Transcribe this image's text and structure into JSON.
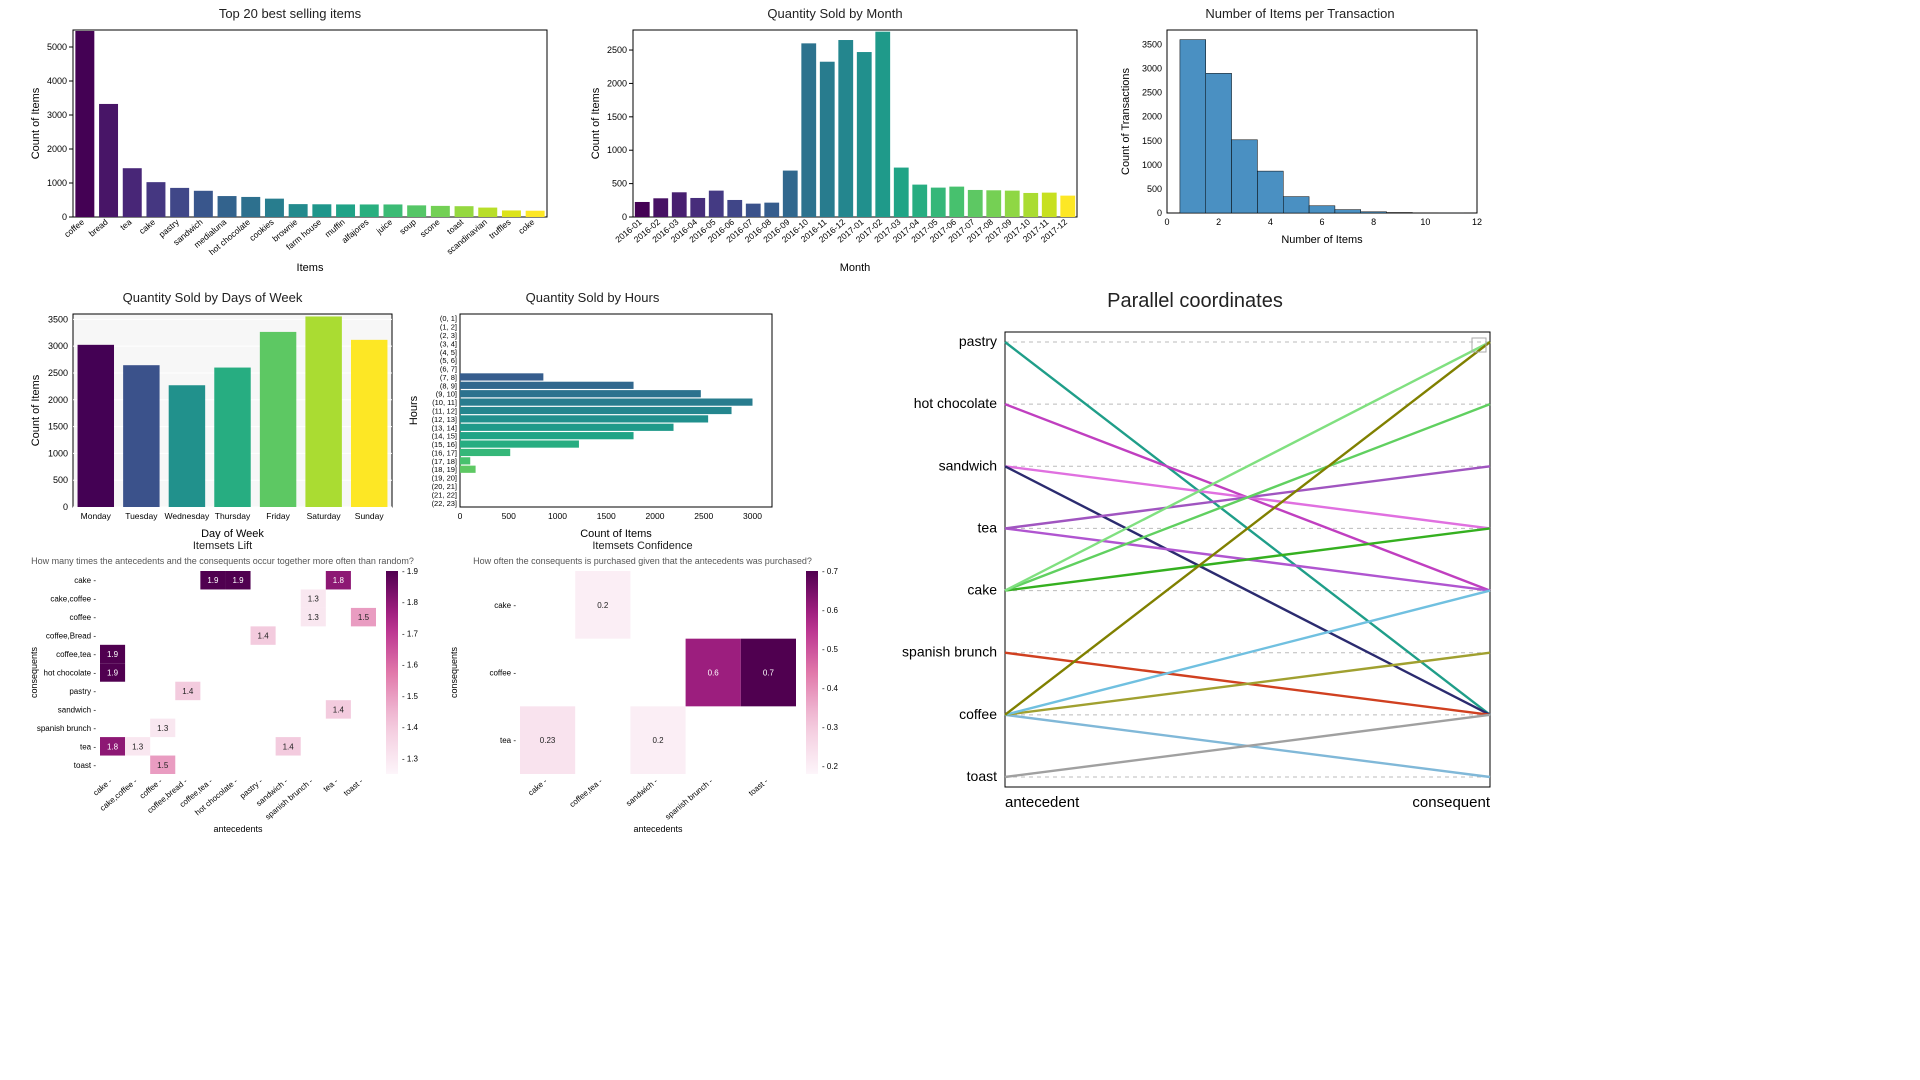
{
  "viridis20": [
    "#440154",
    "#481567",
    "#482677",
    "#453781",
    "#404788",
    "#39568C",
    "#33638D",
    "#2D708E",
    "#287D8E",
    "#238A8D",
    "#1F968B",
    "#20A387",
    "#29AF7F",
    "#3CBB75",
    "#55C667",
    "#73D055",
    "#95D840",
    "#B8DE29",
    "#DCE319",
    "#FDE725"
  ],
  "viridis7": [
    "#440154",
    "#3B528B",
    "#21918C",
    "#27AD81",
    "#5DC863",
    "#AADC32",
    "#FDE725"
  ],
  "viridis24": [
    "#440154",
    "#471164",
    "#481F70",
    "#472D7B",
    "#443A83",
    "#404688",
    "#3B528B",
    "#365D8D",
    "#31688E",
    "#2C728E",
    "#287C8E",
    "#24868E",
    "#21908D",
    "#1F9A8A",
    "#20A486",
    "#27AD81",
    "#35B779",
    "#47C16E",
    "#5DC863",
    "#75D054",
    "#8FD744",
    "#AADC32",
    "#C7E020",
    "#FDE725"
  ],
  "top20": {
    "title": "Top 20 best selling items",
    "ylabel": "Count of Items",
    "xlabel": "Items",
    "ymax": 5500,
    "ytick": 1000,
    "categories": [
      "coffee",
      "bread",
      "tea",
      "cake",
      "pastry",
      "sandwich",
      "medialuna",
      "hot chocolate",
      "cookies",
      "brownie",
      "farm house",
      "muffin",
      "alfajores",
      "juice",
      "soup",
      "scone",
      "toast",
      "scandinavian",
      "truffles",
      "coke"
    ],
    "values": [
      5471,
      3325,
      1435,
      1025,
      856,
      771,
      616,
      590,
      540,
      379,
      374,
      370,
      369,
      369,
      342,
      327,
      318,
      277,
      193,
      185
    ]
  },
  "monthly": {
    "title": "Quantity Sold by Month",
    "ylabel": "Count of Items",
    "xlabel": "Month",
    "ymax": 2800,
    "ytick": 500,
    "categories": [
      "2016-01",
      "2016-02",
      "2016-03",
      "2016-04",
      "2016-05",
      "2016-06",
      "2016-07",
      "2016-08",
      "2016-09",
      "2016-10",
      "2016-11",
      "2016-12",
      "2017-01",
      "2017-02",
      "2017-03",
      "2017-04",
      "2017-05",
      "2017-06",
      "2017-07",
      "2017-08",
      "2017-09",
      "2017-10",
      "2017-11",
      "2017-12"
    ],
    "values": [
      225,
      280,
      370,
      285,
      395,
      255,
      200,
      215,
      695,
      2600,
      2325,
      2650,
      2470,
      2775,
      740,
      485,
      440,
      455,
      405,
      400,
      395,
      360,
      365,
      320
    ]
  },
  "hist": {
    "title": "Number of Items per Transaction",
    "ylabel": "Count of Transactions",
    "xlabel": "Number of Items",
    "ymax": 3800,
    "ytick": 500,
    "xmax": 12,
    "bins": [
      1,
      2,
      3,
      4,
      5,
      6,
      7,
      8,
      9,
      10,
      11
    ],
    "values": [
      3600,
      2900,
      1520,
      870,
      340,
      150,
      70,
      25,
      10,
      5,
      3
    ],
    "bar_color": "#4A90C2",
    "edge": "#000"
  },
  "dow": {
    "title": "Quantity Sold by Days of Week",
    "ylabel": "Count of Items",
    "xlabel": "Day of Week",
    "ymax": 3600,
    "ytick": 500,
    "categories": [
      "Monday",
      "Tuesday",
      "Wednesday",
      "Thursday",
      "Friday",
      "Saturday",
      "Sunday"
    ],
    "values": [
      3025,
      2645,
      2271,
      2601,
      3266,
      3554,
      3118
    ]
  },
  "hours": {
    "title": "Quantity Sold by Hours",
    "xlabel": "Count of Items",
    "ylabel": "Hours",
    "xmax": 3200,
    "xtick": 500,
    "categories": [
      "(0, 1]",
      "(1, 2]",
      "(2, 3]",
      "(3, 4]",
      "(4, 5]",
      "(5, 6]",
      "(6, 7]",
      "(7, 8]",
      "(8, 9]",
      "(9, 10]",
      "(10, 11]",
      "(11, 12]",
      "(12, 13]",
      "(13, 14]",
      "(14, 15]",
      "(15, 16]",
      "(16, 17]",
      "(17, 18]",
      "(18, 19]",
      "(19, 20]",
      "(20, 21]",
      "(21, 22]",
      "(22, 23]"
    ],
    "values": [
      0,
      0,
      0,
      0,
      0,
      0,
      0,
      855,
      1780,
      2470,
      3000,
      2785,
      2545,
      2190,
      1780,
      1220,
      515,
      105,
      160,
      0,
      0,
      0,
      0
    ]
  },
  "lift": {
    "title": "Itemsets Lift",
    "subtitle": "How many times the antecedents and the consequents occur together more often than random?",
    "xlabel": "antecedents",
    "ylabel": "consequents",
    "rows": [
      "cake",
      "cake,coffee",
      "coffee",
      "coffee,Bread",
      "coffee,tea",
      "hot chocolate",
      "pastry",
      "sandwich",
      "spanish brunch",
      "tea",
      "toast"
    ],
    "cols": [
      "cake",
      "cake,coffee",
      "coffee",
      "coffee,bread",
      "coffee,tea",
      "hot chocolate",
      "pastry",
      "sandwich",
      "spanish brunch",
      "tea",
      "toast"
    ],
    "cells": [
      {
        "r": 0,
        "c": 4,
        "v": 1.9
      },
      {
        "r": 0,
        "c": 5,
        "v": 1.9
      },
      {
        "r": 0,
        "c": 9,
        "v": 1.8
      },
      {
        "r": 1,
        "c": 8,
        "v": 1.3
      },
      {
        "r": 2,
        "c": 8,
        "v": 1.3
      },
      {
        "r": 2,
        "c": 10,
        "v": 1.5
      },
      {
        "r": 3,
        "c": 6,
        "v": 1.4
      },
      {
        "r": 4,
        "c": 0,
        "v": 1.9
      },
      {
        "r": 5,
        "c": 0,
        "v": 1.9
      },
      {
        "r": 6,
        "c": 3,
        "v": 1.4
      },
      {
        "r": 7,
        "c": 9,
        "v": 1.4
      },
      {
        "r": 8,
        "c": 2,
        "v": 1.3
      },
      {
        "r": 9,
        "c": 0,
        "v": 1.8
      },
      {
        "r": 9,
        "c": 1,
        "v": 1.3
      },
      {
        "r": 9,
        "c": 7,
        "v": 1.4
      },
      {
        "r": 10,
        "c": 2,
        "v": 1.5
      }
    ],
    "vmin": 1.25,
    "vmax": 1.9,
    "cbar_ticks": [
      1.3,
      1.4,
      1.5,
      1.6,
      1.7,
      1.8,
      1.9
    ]
  },
  "conf": {
    "title": "Itemsets Confidence",
    "subtitle": "How often the consequents is purchased given that the antecedents was purchased?",
    "xlabel": "antecedents",
    "ylabel": "consequents",
    "rows": [
      "cake",
      "coffee",
      "tea"
    ],
    "cols": [
      "cake",
      "coffee,tea",
      "sandwich",
      "spanish brunch",
      "toast"
    ],
    "cells": [
      {
        "r": 0,
        "c": 1,
        "v": 0.2
      },
      {
        "r": 1,
        "c": 3,
        "v": 0.6
      },
      {
        "r": 1,
        "c": 4,
        "v": 0.7
      },
      {
        "r": 2,
        "c": 0,
        "v": 0.23
      },
      {
        "r": 2,
        "c": 2,
        "v": 0.2
      }
    ],
    "vmin": 0.18,
    "vmax": 0.7,
    "cbar_ticks": [
      0.2,
      0.3,
      0.4,
      0.5,
      0.6,
      0.7
    ]
  },
  "parallel": {
    "title": "Parallel coordinates",
    "left_label": "antecedent",
    "right_label": "consequent",
    "categories": [
      "pastry",
      "hot chocolate",
      "sandwich",
      "tea",
      "cake",
      "spanish brunch",
      "coffee",
      "toast"
    ],
    "links": [
      {
        "a": "pastry",
        "c": "coffee",
        "color": "#1F9E89"
      },
      {
        "a": "hot chocolate",
        "c": "cake",
        "color": "#C03FC0"
      },
      {
        "a": "sandwich",
        "c": "tea",
        "color": "#E070E0"
      },
      {
        "a": "sandwich",
        "c": "coffee",
        "color": "#2B2B6F"
      },
      {
        "a": "tea",
        "c": "cake",
        "color": "#B055D0"
      },
      {
        "a": "tea",
        "c": "sandwich",
        "color": "#A055C0"
      },
      {
        "a": "cake",
        "c": "tea",
        "color": "#35B020"
      },
      {
        "a": "cake",
        "c": "hot chocolate",
        "color": "#60D060"
      },
      {
        "a": "cake",
        "c": "pastry",
        "color": "#80E080"
      },
      {
        "a": "spanish brunch",
        "c": "coffee",
        "color": "#D04020"
      },
      {
        "a": "coffee",
        "c": "toast",
        "color": "#80B8D8"
      },
      {
        "a": "coffee",
        "c": "spanish brunch",
        "color": "#A0A030"
      },
      {
        "a": "coffee",
        "c": "cake",
        "color": "#70C0E0"
      },
      {
        "a": "coffee",
        "c": "pastry",
        "color": "#808000"
      },
      {
        "a": "toast",
        "c": "coffee",
        "color": "#A0A0A0"
      }
    ]
  },
  "colors": {
    "text": "#222",
    "grid": "#BBBBBB",
    "frame": "#000"
  }
}
